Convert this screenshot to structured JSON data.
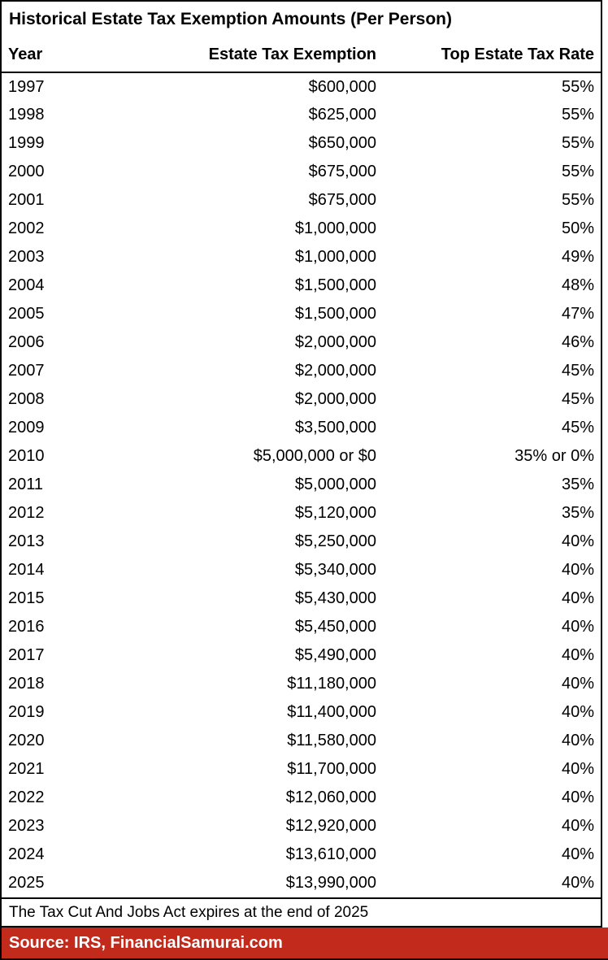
{
  "title": "Historical Estate Tax Exemption Amounts (Per Person)",
  "footnote": "The Tax Cut And Jobs Act expires at the end of 2025",
  "source": "Source: IRS, FinancialSamurai.com",
  "colors": {
    "accent_red": "#c22a1c",
    "border_black": "#000000",
    "text_black": "#000000",
    "source_text_white": "#ffffff"
  },
  "chart_data": {
    "type": "table",
    "title": "Historical Estate Tax Exemption Amounts (Per Person)",
    "columns": [
      "Year",
      "Estate Tax Exemption",
      "Top Estate Tax Rate"
    ],
    "rows": [
      [
        "1997",
        "$600,000",
        "55%"
      ],
      [
        "1998",
        "$625,000",
        "55%"
      ],
      [
        "1999",
        "$650,000",
        "55%"
      ],
      [
        "2000",
        "$675,000",
        "55%"
      ],
      [
        "2001",
        "$675,000",
        "55%"
      ],
      [
        "2002",
        "$1,000,000",
        "50%"
      ],
      [
        "2003",
        "$1,000,000",
        "49%"
      ],
      [
        "2004",
        "$1,500,000",
        "48%"
      ],
      [
        "2005",
        "$1,500,000",
        "47%"
      ],
      [
        "2006",
        "$2,000,000",
        "46%"
      ],
      [
        "2007",
        "$2,000,000",
        "45%"
      ],
      [
        "2008",
        "$2,000,000",
        "45%"
      ],
      [
        "2009",
        "$3,500,000",
        "45%"
      ],
      [
        "2010",
        "$5,000,000 or $0",
        "35% or 0%"
      ],
      [
        "2011",
        "$5,000,000",
        "35%"
      ],
      [
        "2012",
        "$5,120,000",
        "35%"
      ],
      [
        "2013",
        "$5,250,000",
        "40%"
      ],
      [
        "2014",
        "$5,340,000",
        "40%"
      ],
      [
        "2015",
        "$5,430,000",
        "40%"
      ],
      [
        "2016",
        "$5,450,000",
        "40%"
      ],
      [
        "2017",
        "$5,490,000",
        "40%"
      ],
      [
        "2018",
        "$11,180,000",
        "40%"
      ],
      [
        "2019",
        "$11,400,000",
        "40%"
      ],
      [
        "2020",
        "$11,580,000",
        "40%"
      ],
      [
        "2021",
        "$11,700,000",
        "40%"
      ],
      [
        "2022",
        "$12,060,000",
        "40%"
      ],
      [
        "2023",
        "$12,920,000",
        "40%"
      ],
      [
        "2024",
        "$13,610,000",
        "40%"
      ],
      [
        "2025",
        "$13,990,000",
        "40%"
      ]
    ],
    "footnote": "The Tax Cut And Jobs Act expires at the end of 2025",
    "source": "Source: IRS, FinancialSamurai.com",
    "layout": {
      "grid": "outer-border-only",
      "header_underline": true,
      "column_alignment": [
        "left",
        "right",
        "right"
      ]
    }
  }
}
